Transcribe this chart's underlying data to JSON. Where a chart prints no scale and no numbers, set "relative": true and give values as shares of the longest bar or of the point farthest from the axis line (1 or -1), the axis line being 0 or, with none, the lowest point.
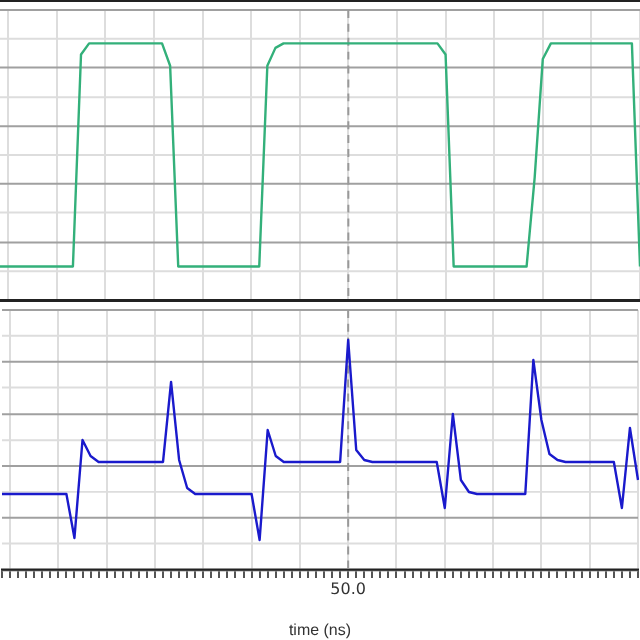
{
  "chart_data": [
    {
      "type": "line",
      "relative": true,
      "grid": true,
      "tick_labels": false,
      "marker": "none",
      "categories": [
        null,
        null,
        null,
        null,
        null,
        null,
        null,
        null,
        null,
        null,
        null,
        null,
        null,
        null,
        null,
        null,
        null,
        null,
        null,
        null,
        null,
        null,
        null,
        null,
        null,
        null,
        null,
        null,
        null,
        null,
        null,
        null,
        null,
        null,
        null,
        null,
        null,
        null,
        null,
        null,
        null,
        null,
        null,
        null,
        null,
        null,
        null,
        null,
        null,
        null,
        null,
        null,
        null,
        null,
        null,
        null,
        null,
        null,
        null,
        null,
        null,
        null,
        null,
        null,
        null,
        null,
        null,
        null,
        null,
        null,
        null,
        null,
        null,
        null,
        null,
        null,
        null,
        null,
        null,
        null
      ],
      "series": [
        {
          "color": "#33b07a",
          "values": [
            0,
            0,
            0,
            0,
            0,
            0,
            0,
            0,
            0,
            0,
            0.95,
            1,
            1,
            1,
            1,
            1,
            1,
            1,
            1,
            1,
            1,
            0.9,
            0,
            0,
            0,
            0,
            0,
            0,
            0,
            0,
            0,
            0,
            0,
            0.9,
            0.98,
            1,
            1,
            1,
            1,
            1,
            1,
            1,
            1,
            1,
            1,
            1,
            1,
            1,
            1,
            1,
            1,
            1,
            1,
            1,
            1,
            0.95,
            0,
            0,
            0,
            0,
            0,
            0,
            0,
            0,
            0,
            0,
            0.4,
            0.93,
            1,
            1,
            1,
            1,
            1,
            1,
            1,
            1,
            1,
            1,
            1,
            0
          ]
        }
      ]
    },
    {
      "type": "line",
      "relative": true,
      "grid": true,
      "tick_labels": "x",
      "marker": "none",
      "xlabel": "time (ns)",
      "annotations": [
        "50.0"
      ],
      "categories": [
        null,
        null,
        null,
        null,
        null,
        null,
        null,
        null,
        null,
        null,
        null,
        null,
        null,
        null,
        null,
        null,
        null,
        null,
        null,
        null,
        null,
        null,
        null,
        null,
        null,
        null,
        null,
        null,
        null,
        null,
        null,
        null,
        null,
        null,
        null,
        null,
        null,
        null,
        null,
        null,
        null,
        null,
        null,
        null,
        null,
        null,
        null,
        null,
        null,
        null,
        null,
        null,
        null,
        null,
        null,
        null,
        null,
        null,
        null,
        null,
        null,
        null,
        null,
        null,
        null,
        null,
        null,
        null,
        null,
        null,
        null,
        null,
        null,
        null,
        null,
        null,
        null,
        null,
        null,
        null
      ],
      "series": [
        {
          "color": "#1a1acc",
          "values": [
            0.23,
            0.23,
            0.23,
            0.23,
            0.23,
            0.23,
            0.23,
            0.23,
            0.23,
            0.01,
            0.5,
            0.42,
            0.39,
            0.39,
            0.39,
            0.39,
            0.39,
            0.39,
            0.39,
            0.39,
            0.39,
            0.79,
            0.4,
            0.26,
            0.23,
            0.23,
            0.23,
            0.23,
            0.23,
            0.23,
            0.23,
            0.23,
            0,
            0.55,
            0.42,
            0.39,
            0.39,
            0.39,
            0.39,
            0.39,
            0.39,
            0.39,
            0.39,
            1,
            0.45,
            0.4,
            0.39,
            0.39,
            0.39,
            0.39,
            0.39,
            0.39,
            0.39,
            0.39,
            0.39,
            0.16,
            0.63,
            0.3,
            0.24,
            0.23,
            0.23,
            0.23,
            0.23,
            0.23,
            0.23,
            0.23,
            0.9,
            0.6,
            0.43,
            0.4,
            0.39,
            0.39,
            0.39,
            0.39,
            0.39,
            0.39,
            0.39,
            0.16,
            0.56,
            0.3
          ]
        }
      ]
    }
  ]
}
